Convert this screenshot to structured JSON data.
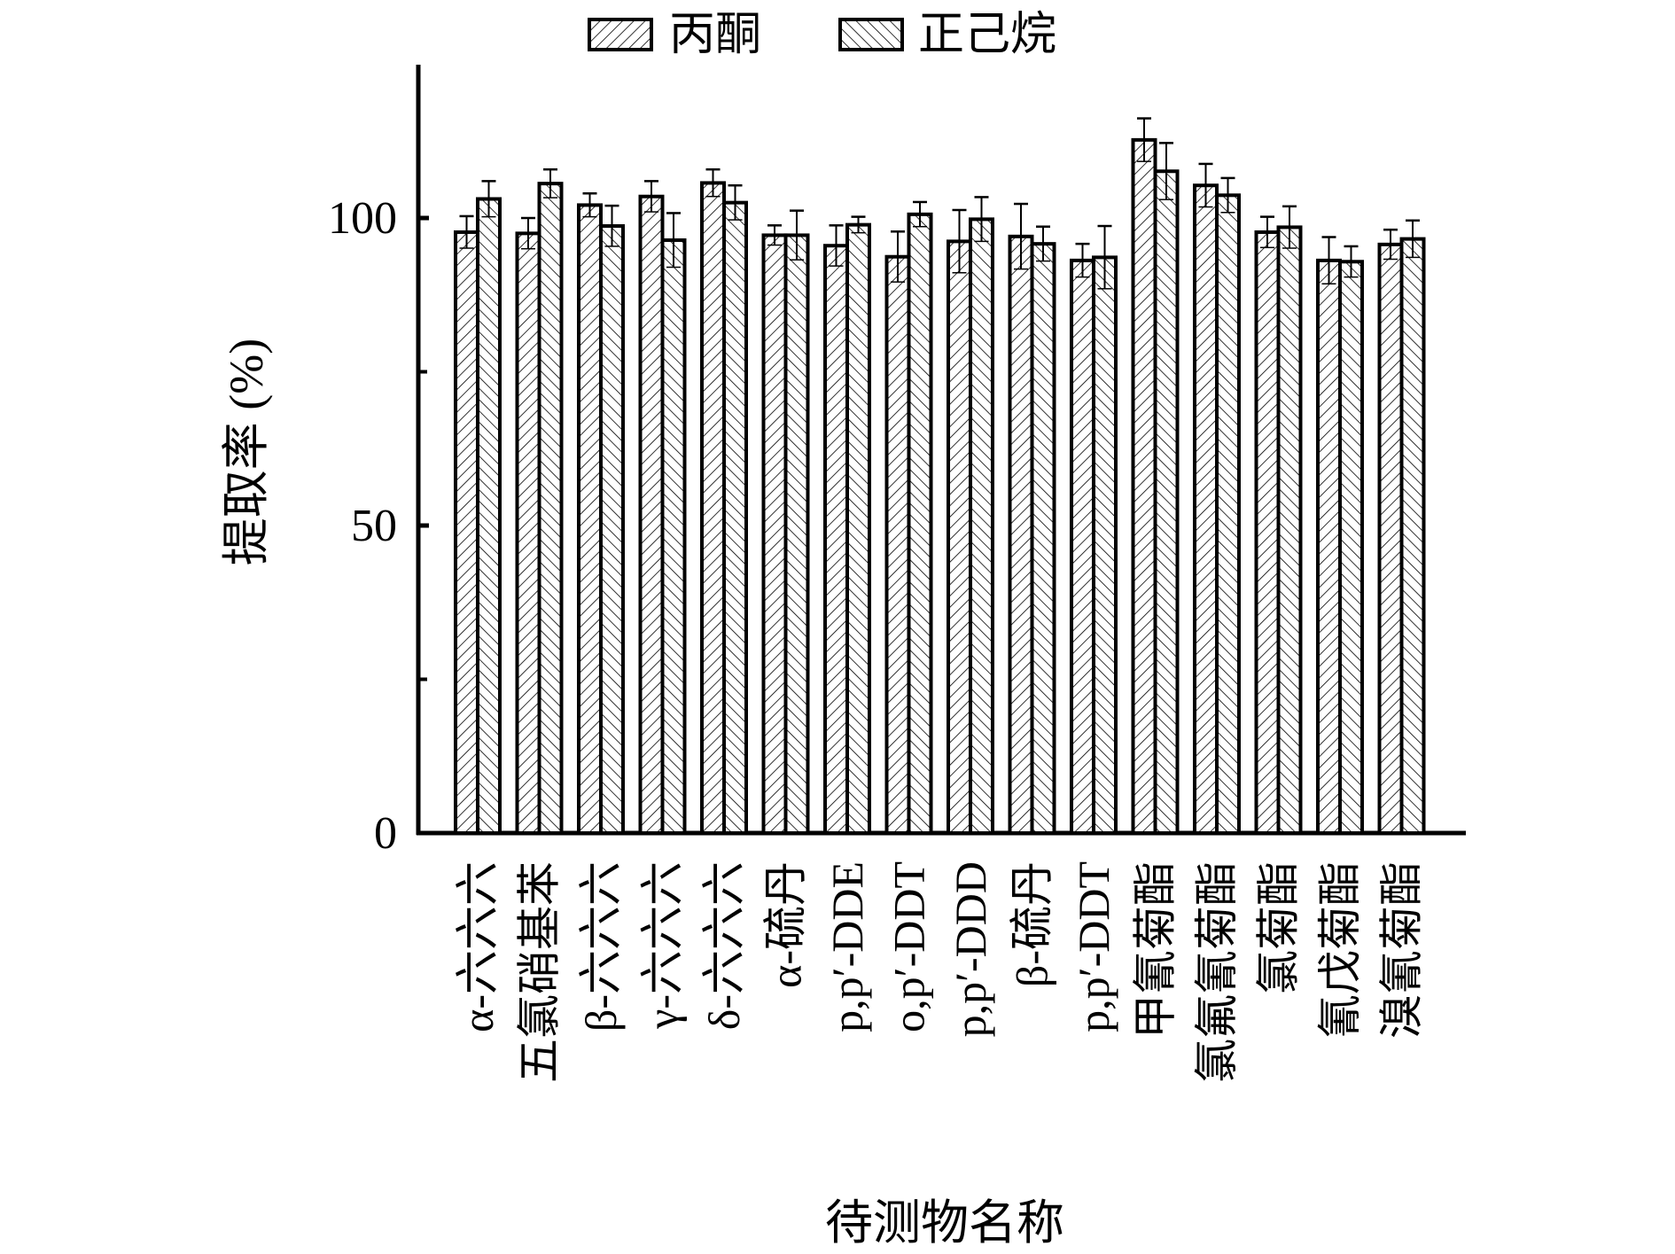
{
  "chart_data": {
    "type": "bar",
    "title": "",
    "xlabel": "待测物名称",
    "ylabel": "提取率 (%)",
    "ylim": [
      0,
      125
    ],
    "yticks": [
      0,
      50,
      100
    ],
    "yminor_ticks": [
      25,
      75
    ],
    "grid": false,
    "legend_position": "top-center",
    "categories": [
      "α-六六六",
      "五氯硝基苯",
      "β-六六六",
      "γ-六六六",
      "δ-六六六",
      "α-硫丹",
      "p,p′-DDE",
      "o,p′-DDT",
      "p,p′-DDD",
      "β-硫丹",
      "p,p′-DDT",
      "甲氰菊酯",
      "氯氟氰菊酯",
      "氯菊酯",
      "氰戊菊酯",
      "溴氰菊酯"
    ],
    "series": [
      {
        "name": "丙酮",
        "hatch": "forward-diagonal",
        "values": [
          97.7,
          97.5,
          102.1,
          103.5,
          105.7,
          97.2,
          95.5,
          93.7,
          96.2,
          97.0,
          93.1,
          112.7,
          105.3,
          97.7,
          93.1,
          95.7
        ],
        "errors": [
          2.6,
          2.5,
          1.9,
          2.5,
          2.2,
          1.6,
          3.3,
          4.1,
          5.1,
          5.3,
          2.7,
          3.5,
          3.5,
          2.5,
          3.8,
          2.4
        ]
      },
      {
        "name": "正己烷",
        "hatch": "backward-diagonal",
        "values": [
          103.1,
          105.6,
          98.7,
          96.4,
          102.5,
          97.2,
          98.9,
          100.6,
          99.8,
          95.8,
          93.6,
          107.6,
          103.7,
          98.5,
          92.9,
          96.6
        ],
        "errors": [
          2.9,
          2.3,
          3.3,
          4.4,
          2.8,
          4.0,
          1.3,
          2.0,
          3.6,
          2.8,
          5.1,
          4.6,
          2.8,
          3.4,
          2.5,
          3.0
        ]
      }
    ]
  }
}
